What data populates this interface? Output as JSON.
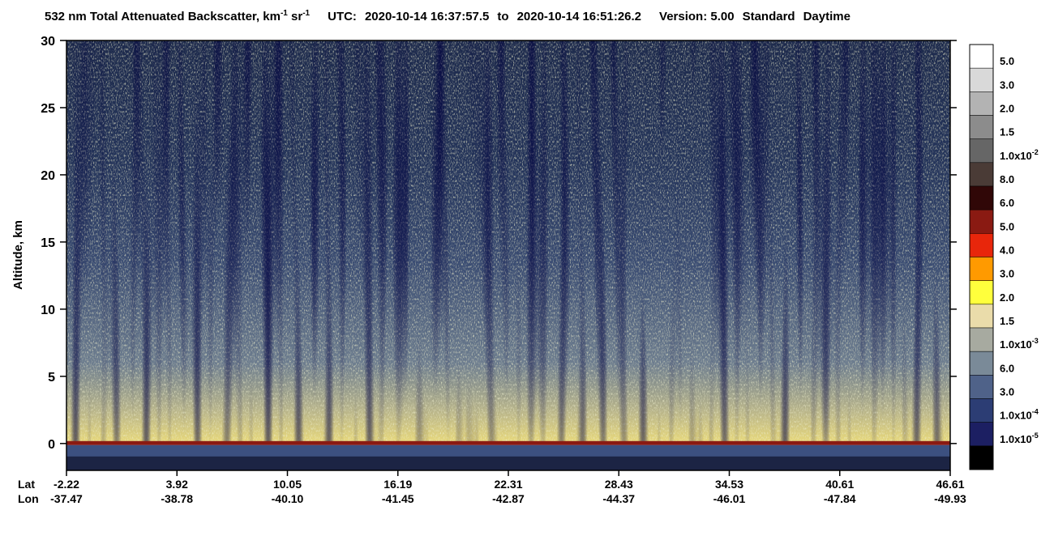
{
  "chart_data": {
    "type": "curtain",
    "title": {
      "main": "532 nm Total Attenuated Backscatter, km",
      "sup1": "-1",
      "mid": " sr",
      "sup2": "-1",
      "utc": "UTC:",
      "start": "2020-10-14 16:37:57.5",
      "to": "to",
      "end": "2020-10-14 16:51:26.2",
      "version": "Version: 5.00",
      "product": "Standard",
      "daylight": "Daytime"
    },
    "ylabel": "Altitude, km",
    "ylim": [
      -2,
      30
    ],
    "yticks": [
      0,
      5,
      10,
      15,
      20,
      25,
      30
    ],
    "x_rows": [
      {
        "name": "Lat",
        "labels": [
          "-2.22",
          "3.92",
          "10.05",
          "16.19",
          "22.31",
          "28.43",
          "34.53",
          "40.61",
          "46.61"
        ]
      },
      {
        "name": "Lon",
        "labels": [
          "-37.47",
          "-38.78",
          "-40.10",
          "-41.45",
          "-42.87",
          "-44.37",
          "-46.01",
          "-47.84",
          "-49.93"
        ]
      }
    ],
    "colorbar": {
      "colors": [
        "#ffffff",
        "#d9d9d9",
        "#b3b3b3",
        "#8c8c8c",
        "#666666",
        "#4a3b36",
        "#300707",
        "#8a1a12",
        "#e8260b",
        "#ff9a00",
        "#ffff3c",
        "#eadcaa",
        "#a7aaa0",
        "#7a8a98",
        "#4f6289",
        "#2c3d74",
        "#1c1f62",
        "#000000"
      ],
      "labels": [
        {
          "text": "5.0"
        },
        {
          "text": "3.0"
        },
        {
          "text": "2.0"
        },
        {
          "text": "1.5"
        },
        {
          "text": "1.0x10",
          "sup": "-2"
        },
        {
          "text": "8.0"
        },
        {
          "text": "6.0"
        },
        {
          "text": "5.0"
        },
        {
          "text": "4.0"
        },
        {
          "text": "3.0"
        },
        {
          "text": "2.0"
        },
        {
          "text": "1.5"
        },
        {
          "text": "1.0x10",
          "sup": "-3"
        },
        {
          "text": "6.0"
        },
        {
          "text": "3.0"
        },
        {
          "text": "1.0x10",
          "sup": "-4"
        },
        {
          "text": "1.0x10",
          "sup": "-5"
        },
        null
      ]
    }
  }
}
